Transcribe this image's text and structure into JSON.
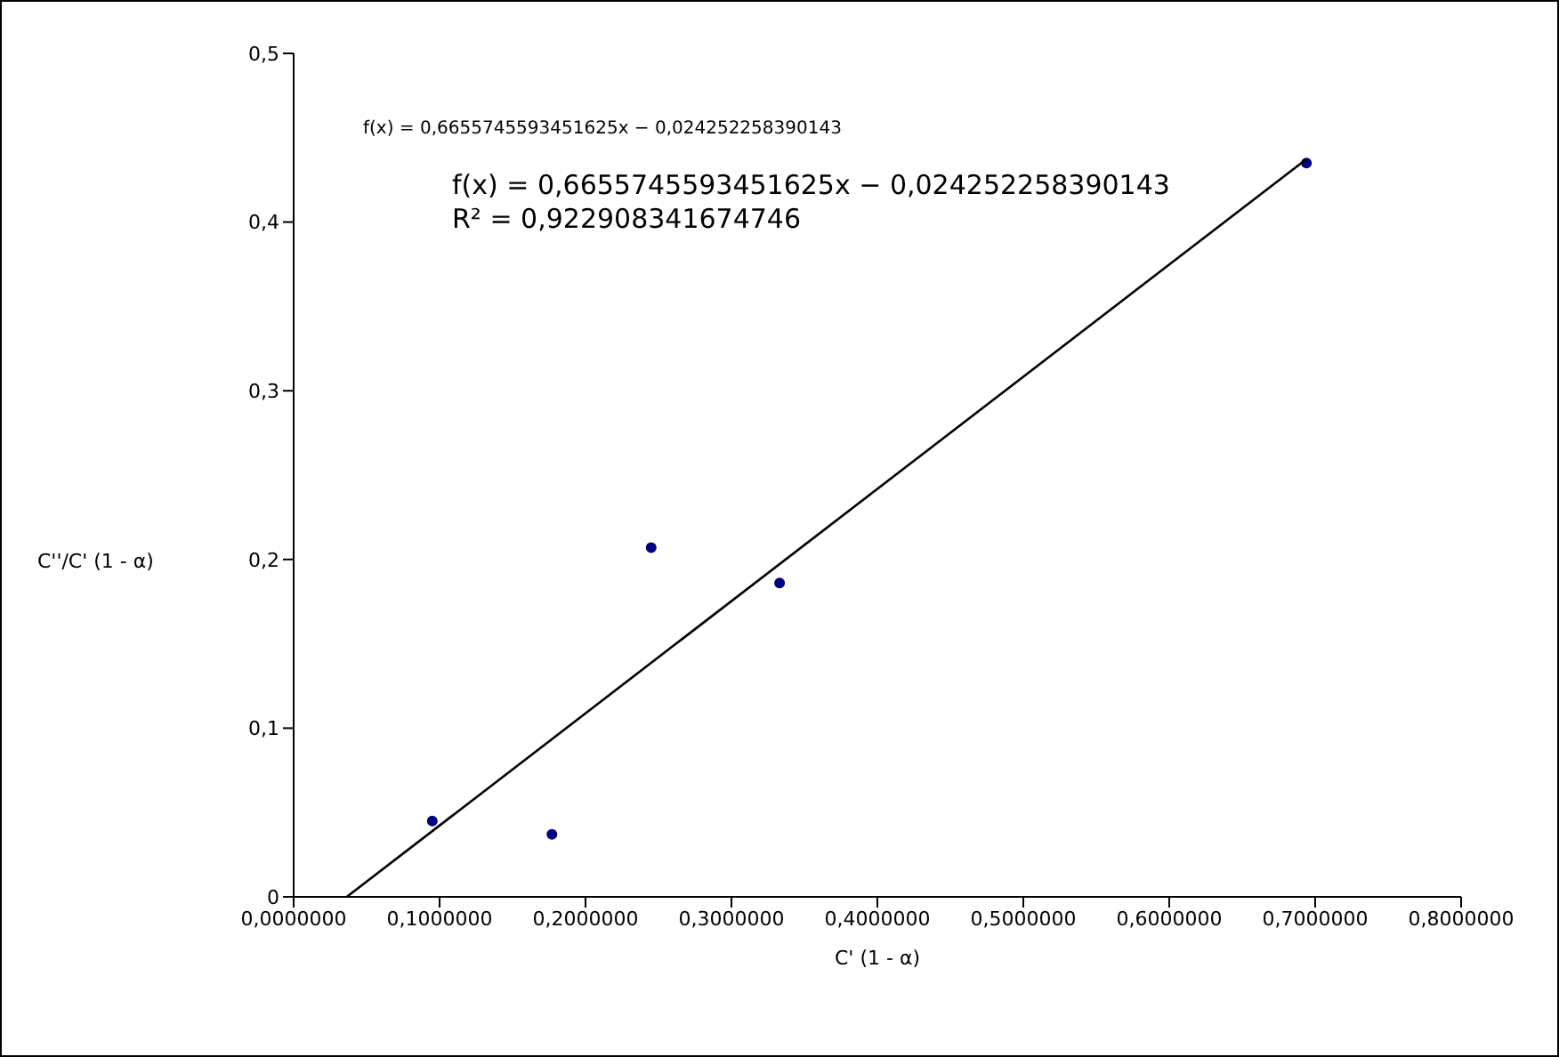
{
  "chart_data": {
    "type": "scatter",
    "xlabel": "C' (1 - α)",
    "ylabel": "C''/C' (1 - α)",
    "annotations": [
      "f(x) = 0,6655745593451625x − 0,024252258390143",
      "f(x) = 0,6655745593451625x − 0,024252258390143",
      "R² = 0,922908341674746"
    ],
    "series": [
      {
        "color": "#000080",
        "marker": "circle",
        "x": [
          0.095,
          0.177,
          0.245,
          0.333,
          0.694
        ],
        "values": [
          0.045,
          0.037,
          0.207,
          0.186,
          0.435
        ]
      },
      {
        "type": "line",
        "color": "#000000",
        "marker": "none",
        "line_style": "solid",
        "x": [
          0.0364,
          0.6935
        ],
        "values": [
          0.0,
          0.437
        ]
      }
    ],
    "xlim": [
      0,
      0.8
    ],
    "ylim": [
      0,
      0.5
    ],
    "xticks": [
      {
        "value": 0,
        "label": "0,0000000"
      },
      {
        "value": 0.1,
        "label": "0,1000000"
      },
      {
        "value": 0.2,
        "label": "0,2000000"
      },
      {
        "value": 0.3,
        "label": "0,3000000"
      },
      {
        "value": 0.4,
        "label": "0,4000000"
      },
      {
        "value": 0.5,
        "label": "0,5000000"
      },
      {
        "value": 0.6,
        "label": "0,6000000"
      },
      {
        "value": 0.7,
        "label": "0,7000000"
      },
      {
        "value": 0.8,
        "label": "0,8000000"
      }
    ],
    "yticks": [
      0,
      {
        "value": 0.1,
        "label": "0,1"
      },
      {
        "value": 0.2,
        "label": "0,2"
      },
      {
        "value": 0.3,
        "label": "0,3"
      },
      {
        "value": 0.4,
        "label": "0,4"
      },
      {
        "value": 0.5,
        "label": "0,5"
      }
    ],
    "grid": false
  }
}
